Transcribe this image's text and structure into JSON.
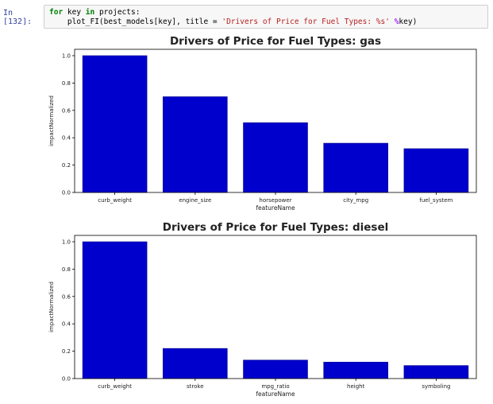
{
  "cell": {
    "prompt": "In [132]:",
    "code_line1_kw1": "for",
    "code_line1_var": " key ",
    "code_line1_kw2": "in",
    "code_line1_rest": " projects:",
    "code_line2_fn": "    plot_FI(best_models[key], title = ",
    "code_line2_str": "'Drivers of Price for Fuel Types: %s'",
    "code_line2_op": " %",
    "code_line2_end": "key)"
  },
  "colors": {
    "bar": "#0000cd",
    "axis": "#000000"
  },
  "chart_data": [
    {
      "type": "bar",
      "title": "Drivers of Price for Fuel Types: gas",
      "xlabel": "featureName",
      "ylabel": "impactNormalized",
      "categories": [
        "curb_weight",
        "engine_size",
        "horsepower",
        "city_mpg",
        "fuel_system"
      ],
      "values": [
        1.0,
        0.7,
        0.51,
        0.36,
        0.32
      ],
      "ylim": [
        0,
        1.0
      ],
      "yticks": [
        "0.0",
        "0.2",
        "0.4",
        "0.6",
        "0.8",
        "1.0"
      ],
      "grid": false,
      "legend": "none"
    },
    {
      "type": "bar",
      "title": "Drivers of Price for Fuel Types: diesel",
      "xlabel": "featureName",
      "ylabel": "impactNormalized",
      "categories": [
        "curb_weight",
        "stroke",
        "mpg_ratio",
        "height",
        "symboling"
      ],
      "values": [
        1.0,
        0.22,
        0.135,
        0.12,
        0.095
      ],
      "ylim": [
        0,
        1.0
      ],
      "yticks": [
        "0.0",
        "0.2",
        "0.4",
        "0.6",
        "0.8",
        "1.0"
      ],
      "grid": false,
      "legend": "none"
    }
  ]
}
